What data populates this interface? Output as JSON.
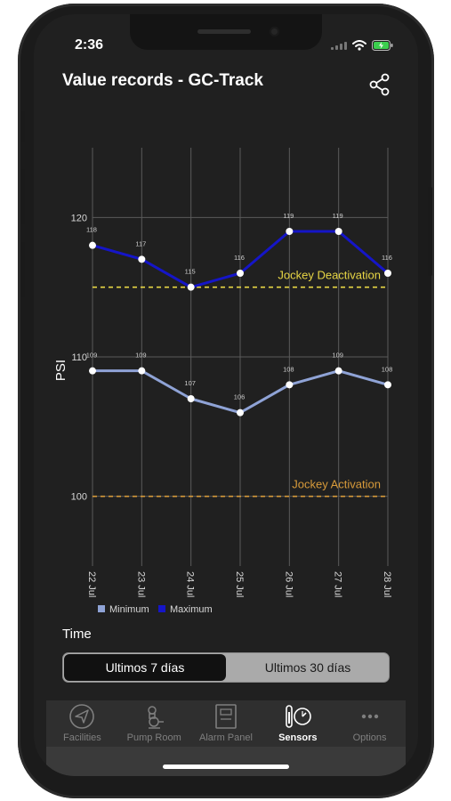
{
  "status_bar": {
    "time": "2:36"
  },
  "header": {
    "title": "Value records - GC-Track"
  },
  "chart_data": {
    "type": "line",
    "ylabel": "PSI",
    "ylim": [
      95,
      125
    ],
    "yticks": [
      100,
      110,
      120
    ],
    "categories": [
      "22 Jul",
      "23 Jul",
      "24 Jul",
      "25 Jul",
      "26 Jul",
      "27 Jul",
      "28 Jul"
    ],
    "series": [
      {
        "name": "Maximum",
        "color": "#1515c8",
        "values": [
          118,
          117,
          115,
          116,
          119,
          119,
          116
        ]
      },
      {
        "name": "Minimum",
        "color": "#8fa3d6",
        "values": [
          109,
          109,
          107,
          106,
          108,
          109,
          108
        ]
      }
    ],
    "reference_lines": [
      {
        "label": "Jockey Deactivation",
        "value": 115,
        "color": "#e8d645"
      },
      {
        "label": "Jockey Activation",
        "value": 100,
        "color": "#d79a3a"
      }
    ],
    "legend": [
      "Minimum",
      "Maximum"
    ]
  },
  "controls": {
    "time_label": "Time",
    "ranges": [
      "Ultimos 7 días",
      "Ultimos 30 días"
    ],
    "selected": "Ultimos 7 días"
  },
  "tabs": [
    {
      "label": "Facilities",
      "icon": "paper-plane-icon",
      "active": false
    },
    {
      "label": "Pump Room",
      "icon": "pump-icon",
      "active": false
    },
    {
      "label": "Alarm Panel",
      "icon": "alarm-panel-icon",
      "active": false
    },
    {
      "label": "Sensors",
      "icon": "gauge-icon",
      "active": true
    },
    {
      "label": "Options",
      "icon": "more-icon",
      "active": false
    }
  ]
}
